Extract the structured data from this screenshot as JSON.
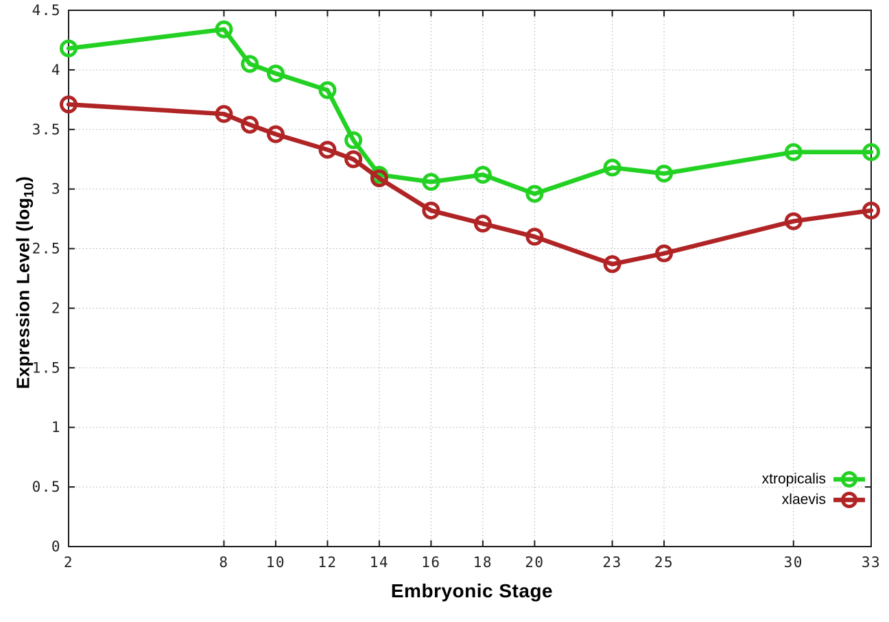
{
  "figure": {
    "title": "",
    "ylabel_main": "Expression Level (log",
    "ylabel_sub": "10",
    "ylabel_close": ")"
  },
  "chart_data": {
    "type": "line",
    "title": "",
    "xlabel": "Embryonic Stage",
    "ylabel": "Expression Level (log10)",
    "x": [
      2,
      8,
      9,
      10,
      12,
      13,
      14,
      16,
      18,
      20,
      23,
      25,
      30,
      33
    ],
    "series": [
      {
        "name": "xtropicalis",
        "color": "#23d123",
        "values": [
          4.18,
          4.34,
          4.05,
          3.97,
          3.83,
          3.41,
          3.12,
          3.06,
          3.12,
          2.96,
          3.18,
          3.13,
          3.31,
          3.31
        ]
      },
      {
        "name": "xlaevis",
        "color": "#b02425",
        "values": [
          3.71,
          3.63,
          3.54,
          3.46,
          3.33,
          3.25,
          3.09,
          2.82,
          2.71,
          2.6,
          2.37,
          2.46,
          2.73,
          2.82
        ]
      }
    ],
    "xlim": [
      2,
      33
    ],
    "ylim": [
      0,
      4.5
    ],
    "x_ticks": [
      2,
      8,
      10,
      12,
      14,
      16,
      18,
      20,
      23,
      25,
      30,
      33
    ],
    "x_tick_labels": [
      "2",
      "8",
      "10",
      "12",
      "14",
      "16",
      "18",
      "20",
      "23",
      "25",
      "30",
      "33"
    ],
    "y_ticks": [
      0,
      0.5,
      1,
      1.5,
      2,
      2.5,
      3,
      3.5,
      4,
      4.5
    ],
    "y_tick_labels": [
      "0",
      "0.5",
      "1",
      "1.5",
      "2",
      "2.5",
      "3",
      "3.5",
      "4",
      "4.5"
    ],
    "grid": true,
    "grid_style": "dotted",
    "legend_position": "bottom-right",
    "marker": "open-circle",
    "border_color": "#1a1a1a",
    "grid_color": "#bfbfbf"
  }
}
